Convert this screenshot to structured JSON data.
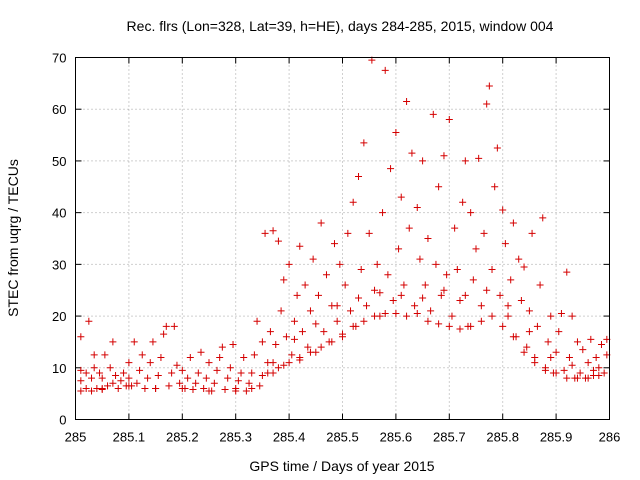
{
  "chart_data": {
    "type": "scatter",
    "title": "Rec. flrs (Lon=328, Lat=39, h=HE), days 284-285, 2015, window 004",
    "xlabel": "GPS time / Days of year 2015",
    "ylabel": "STEC from uqrg / TECUs",
    "xlim": [
      285,
      286
    ],
    "ylim": [
      0,
      70
    ],
    "x_ticks": [
      285,
      285.1,
      285.2,
      285.3,
      285.4,
      285.5,
      285.6,
      285.7,
      285.8,
      285.9,
      286
    ],
    "x_tick_labels": [
      "285",
      "285.1",
      "285.2",
      "285.3",
      "285.4",
      "285.5",
      "285.6",
      "285.7",
      "285.8",
      "285.9",
      "286"
    ],
    "y_ticks": [
      0,
      10,
      20,
      30,
      40,
      50,
      60,
      70
    ],
    "y_tick_labels": [
      "0",
      "10",
      "20",
      "30",
      "40",
      "50",
      "60",
      "70"
    ],
    "grid": true,
    "marker": "+",
    "series_color": "#d40000",
    "points": [
      [
        285.01,
        5.5
      ],
      [
        285.01,
        7.5
      ],
      [
        285.01,
        9.5
      ],
      [
        285.01,
        16
      ],
      [
        285.02,
        6
      ],
      [
        285.02,
        9
      ],
      [
        285.025,
        19
      ],
      [
        285.03,
        5.5
      ],
      [
        285.03,
        8
      ],
      [
        285.035,
        10
      ],
      [
        285.035,
        12.5
      ],
      [
        285.04,
        6
      ],
      [
        285.045,
        9
      ],
      [
        285.05,
        5.8
      ],
      [
        285.05,
        8
      ],
      [
        285.055,
        12.5
      ],
      [
        285.06,
        6.5
      ],
      [
        285.065,
        10
      ],
      [
        285.07,
        7
      ],
      [
        285.07,
        15
      ],
      [
        285.075,
        8.5
      ],
      [
        285.08,
        6
      ],
      [
        285.085,
        7.5
      ],
      [
        285.09,
        9
      ],
      [
        285.095,
        6.5
      ],
      [
        285.1,
        8
      ],
      [
        285.1,
        11
      ],
      [
        285.105,
        6.5
      ],
      [
        285.11,
        15
      ],
      [
        285.115,
        7
      ],
      [
        285.12,
        9.5
      ],
      [
        285.125,
        12.5
      ],
      [
        285.13,
        6
      ],
      [
        285.135,
        8
      ],
      [
        285.14,
        11
      ],
      [
        285.145,
        15
      ],
      [
        285.15,
        6
      ],
      [
        285.155,
        8.5
      ],
      [
        285.16,
        12
      ],
      [
        285.165,
        16.5
      ],
      [
        285.17,
        18
      ],
      [
        285.175,
        6.5
      ],
      [
        285.18,
        9
      ],
      [
        285.185,
        18
      ],
      [
        285.19,
        10.5
      ],
      [
        285.195,
        7
      ],
      [
        285.2,
        9.5
      ],
      [
        285.205,
        6
      ],
      [
        285.21,
        8
      ],
      [
        285.215,
        12
      ],
      [
        285.22,
        5.8
      ],
      [
        285.225,
        7
      ],
      [
        285.23,
        9
      ],
      [
        285.235,
        13
      ],
      [
        285.24,
        6
      ],
      [
        285.245,
        8
      ],
      [
        285.25,
        11
      ],
      [
        285.255,
        5.5
      ],
      [
        285.26,
        7
      ],
      [
        285.265,
        9.5
      ],
      [
        285.27,
        12
      ],
      [
        285.275,
        14
      ],
      [
        285.28,
        5.8
      ],
      [
        285.285,
        8
      ],
      [
        285.29,
        10
      ],
      [
        285.295,
        14.5
      ],
      [
        285.3,
        6
      ],
      [
        285.305,
        7.5
      ],
      [
        285.31,
        9
      ],
      [
        285.315,
        12
      ],
      [
        285.32,
        5.5
      ],
      [
        285.325,
        7
      ],
      [
        285.33,
        9
      ],
      [
        285.335,
        12.5
      ],
      [
        285.34,
        19
      ],
      [
        285.345,
        6.5
      ],
      [
        285.35,
        8.5
      ],
      [
        285.35,
        15
      ],
      [
        285.355,
        36
      ],
      [
        285.36,
        11
      ],
      [
        285.365,
        17
      ],
      [
        285.37,
        9
      ],
      [
        285.37,
        36.5
      ],
      [
        285.375,
        14.5
      ],
      [
        285.38,
        34.5
      ],
      [
        285.385,
        21
      ],
      [
        285.39,
        10.5
      ],
      [
        285.39,
        27
      ],
      [
        285.395,
        16
      ],
      [
        285.4,
        30
      ],
      [
        285.405,
        12.5
      ],
      [
        285.41,
        19
      ],
      [
        285.415,
        24
      ],
      [
        285.42,
        11.5
      ],
      [
        285.42,
        33.5
      ],
      [
        285.425,
        17
      ],
      [
        285.43,
        26
      ],
      [
        285.435,
        14
      ],
      [
        285.44,
        21
      ],
      [
        285.445,
        31
      ],
      [
        285.45,
        13
      ],
      [
        285.455,
        24
      ],
      [
        285.46,
        38
      ],
      [
        285.465,
        17
      ],
      [
        285.47,
        28
      ],
      [
        285.475,
        15
      ],
      [
        285.48,
        22
      ],
      [
        285.485,
        34
      ],
      [
        285.49,
        19
      ],
      [
        285.495,
        30
      ],
      [
        285.5,
        16
      ],
      [
        285.505,
        26
      ],
      [
        285.51,
        36
      ],
      [
        285.515,
        21
      ],
      [
        285.52,
        42
      ],
      [
        285.525,
        18
      ],
      [
        285.53,
        47
      ],
      [
        285.535,
        29
      ],
      [
        285.54,
        53.5
      ],
      [
        285.545,
        22
      ],
      [
        285.55,
        36
      ],
      [
        285.555,
        69.5
      ],
      [
        285.56,
        25
      ],
      [
        285.565,
        30
      ],
      [
        285.57,
        20
      ],
      [
        285.575,
        40
      ],
      [
        285.58,
        67.5
      ],
      [
        285.585,
        28
      ],
      [
        285.59,
        48.5
      ],
      [
        285.595,
        23
      ],
      [
        285.6,
        55.5
      ],
      [
        285.605,
        33
      ],
      [
        285.61,
        43
      ],
      [
        285.615,
        26
      ],
      [
        285.62,
        61.5
      ],
      [
        285.625,
        37
      ],
      [
        285.63,
        51.5
      ],
      [
        285.635,
        22
      ],
      [
        285.64,
        41
      ],
      [
        285.645,
        31
      ],
      [
        285.65,
        50
      ],
      [
        285.655,
        26
      ],
      [
        285.66,
        35
      ],
      [
        285.665,
        21
      ],
      [
        285.67,
        59
      ],
      [
        285.675,
        30
      ],
      [
        285.68,
        45
      ],
      [
        285.685,
        24
      ],
      [
        285.69,
        51
      ],
      [
        285.695,
        28
      ],
      [
        285.7,
        58
      ],
      [
        285.705,
        20
      ],
      [
        285.71,
        37
      ],
      [
        285.715,
        29
      ],
      [
        285.72,
        23
      ],
      [
        285.725,
        42
      ],
      [
        285.73,
        50
      ],
      [
        285.735,
        18
      ],
      [
        285.74,
        40
      ],
      [
        285.745,
        27
      ],
      [
        285.75,
        33
      ],
      [
        285.755,
        50.5
      ],
      [
        285.76,
        22
      ],
      [
        285.765,
        36
      ],
      [
        285.77,
        61
      ],
      [
        285.775,
        64.5
      ],
      [
        285.78,
        29
      ],
      [
        285.785,
        45
      ],
      [
        285.79,
        52.5
      ],
      [
        285.795,
        24
      ],
      [
        285.8,
        40.5
      ],
      [
        285.805,
        34
      ],
      [
        285.81,
        20
      ],
      [
        285.815,
        27
      ],
      [
        285.82,
        38
      ],
      [
        285.825,
        16
      ],
      [
        285.83,
        31
      ],
      [
        285.835,
        23
      ],
      [
        285.84,
        29.5
      ],
      [
        285.845,
        14
      ],
      [
        285.85,
        21
      ],
      [
        285.855,
        36
      ],
      [
        285.86,
        12
      ],
      [
        285.865,
        18
      ],
      [
        285.87,
        26
      ],
      [
        285.875,
        39
      ],
      [
        285.88,
        10
      ],
      [
        285.885,
        15
      ],
      [
        285.89,
        20
      ],
      [
        285.895,
        9
      ],
      [
        285.9,
        13
      ],
      [
        285.905,
        17
      ],
      [
        285.91,
        20.5
      ],
      [
        285.915,
        9.5
      ],
      [
        285.92,
        28.5
      ],
      [
        285.925,
        12
      ],
      [
        285.93,
        20
      ],
      [
        285.935,
        8
      ],
      [
        285.94,
        15
      ],
      [
        285.945,
        9
      ],
      [
        285.95,
        13.5
      ],
      [
        285.955,
        8
      ],
      [
        285.96,
        11
      ],
      [
        285.965,
        15.5
      ],
      [
        285.97,
        8.5
      ],
      [
        285.975,
        12
      ],
      [
        285.98,
        10
      ],
      [
        285.985,
        14.5
      ],
      [
        285.99,
        9
      ],
      [
        285.995,
        12.5
      ],
      [
        285.995,
        15.5
      ],
      [
        285.36,
        9
      ],
      [
        285.38,
        10
      ],
      [
        285.4,
        11
      ],
      [
        285.42,
        12
      ],
      [
        285.44,
        13
      ],
      [
        285.46,
        14
      ],
      [
        285.48,
        15
      ],
      [
        285.5,
        16.5
      ],
      [
        285.52,
        18
      ],
      [
        285.54,
        19
      ],
      [
        285.56,
        20
      ],
      [
        285.58,
        20.5
      ],
      [
        285.6,
        20.5
      ],
      [
        285.62,
        20
      ],
      [
        285.64,
        20.5
      ],
      [
        285.66,
        19
      ],
      [
        285.68,
        18.5
      ],
      [
        285.7,
        18
      ],
      [
        285.72,
        17.5
      ],
      [
        285.74,
        18
      ],
      [
        285.76,
        19
      ],
      [
        285.78,
        20
      ],
      [
        285.8,
        18
      ],
      [
        285.82,
        16
      ],
      [
        285.84,
        13
      ],
      [
        285.86,
        11
      ],
      [
        285.88,
        9.5
      ],
      [
        285.9,
        9
      ],
      [
        285.92,
        8
      ],
      [
        285.94,
        8
      ],
      [
        285.96,
        8
      ],
      [
        285.98,
        8.5
      ],
      [
        285.05,
        6
      ],
      [
        285.1,
        6.5
      ],
      [
        285.15,
        6
      ],
      [
        285.2,
        6
      ],
      [
        285.25,
        5.5
      ],
      [
        285.3,
        5.5
      ],
      [
        285.33,
        6
      ],
      [
        285.37,
        11
      ],
      [
        285.41,
        15.5
      ],
      [
        285.45,
        18.5
      ],
      [
        285.49,
        22
      ],
      [
        285.53,
        23.5
      ],
      [
        285.57,
        24.5
      ],
      [
        285.61,
        24
      ],
      [
        285.65,
        23.5
      ],
      [
        285.69,
        25
      ],
      [
        285.73,
        24
      ],
      [
        285.77,
        25
      ],
      [
        285.81,
        22
      ],
      [
        285.85,
        17
      ],
      [
        285.89,
        12
      ],
      [
        285.93,
        10.5
      ],
      [
        285.97,
        9.5
      ]
    ]
  }
}
